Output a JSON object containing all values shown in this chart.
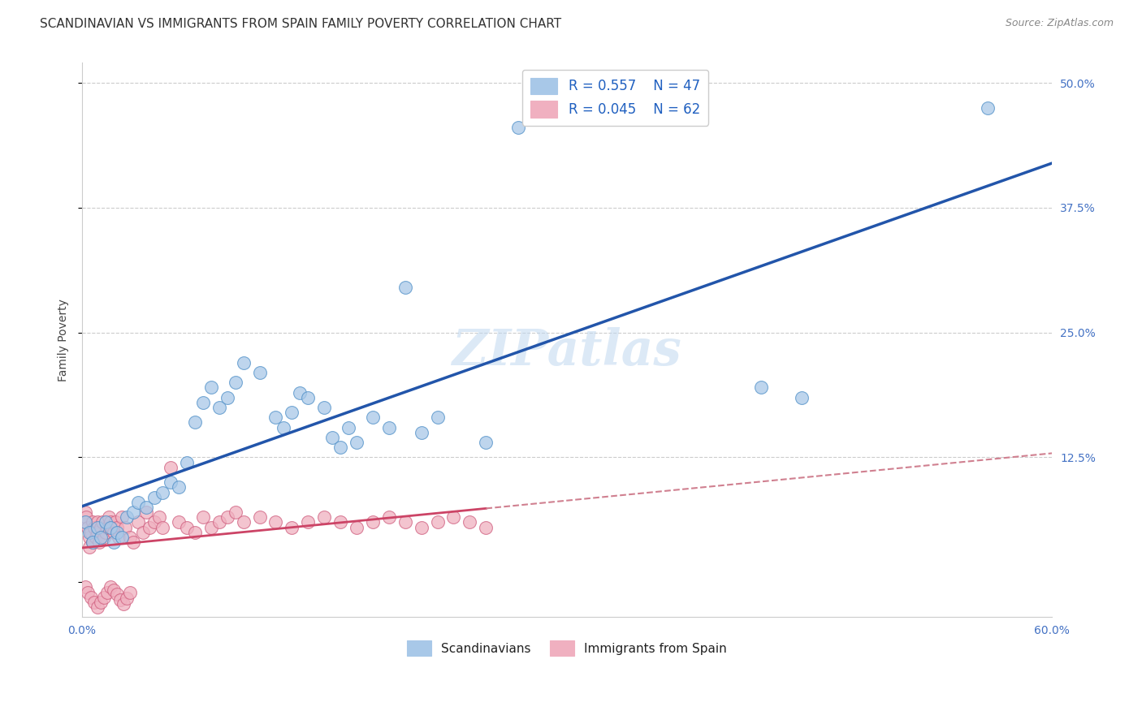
{
  "title": "SCANDINAVIAN VS IMMIGRANTS FROM SPAIN FAMILY POVERTY CORRELATION CHART",
  "source": "Source: ZipAtlas.com",
  "xlim": [
    0.0,
    0.6
  ],
  "ylim": [
    -0.035,
    0.52
  ],
  "ylabel": "Family Poverty",
  "legend_labels": [
    "Scandinavians",
    "Immigrants from Spain"
  ],
  "blue_color": "#A8C8E8",
  "blue_edge_color": "#5090C8",
  "pink_color": "#F0B0C0",
  "pink_edge_color": "#D06080",
  "blue_line_color": "#2255AA",
  "pink_line_color": "#CC4466",
  "pink_dashed_color": "#D08090",
  "watermark": "ZIPatlas",
  "grid_color": "#CCCCCC",
  "background_color": "#FFFFFF",
  "title_fontsize": 11,
  "axis_label_fontsize": 10,
  "tick_fontsize": 10,
  "source_fontsize": 9,
  "scandinavians_x": [
    0.002,
    0.005,
    0.007,
    0.01,
    0.012,
    0.015,
    0.018,
    0.02,
    0.022,
    0.025,
    0.028,
    0.032,
    0.035,
    0.04,
    0.045,
    0.05,
    0.055,
    0.06,
    0.065,
    0.07,
    0.075,
    0.08,
    0.085,
    0.09,
    0.095,
    0.1,
    0.11,
    0.12,
    0.125,
    0.13,
    0.135,
    0.14,
    0.15,
    0.155,
    0.16,
    0.165,
    0.17,
    0.18,
    0.19,
    0.2,
    0.21,
    0.22,
    0.25,
    0.27,
    0.42,
    0.445,
    0.56
  ],
  "scandinavians_y": [
    0.06,
    0.05,
    0.04,
    0.055,
    0.045,
    0.06,
    0.055,
    0.04,
    0.05,
    0.045,
    0.065,
    0.07,
    0.08,
    0.075,
    0.085,
    0.09,
    0.1,
    0.095,
    0.12,
    0.16,
    0.18,
    0.195,
    0.175,
    0.185,
    0.2,
    0.22,
    0.21,
    0.165,
    0.155,
    0.17,
    0.19,
    0.185,
    0.175,
    0.145,
    0.135,
    0.155,
    0.14,
    0.165,
    0.155,
    0.295,
    0.15,
    0.165,
    0.14,
    0.455,
    0.195,
    0.185,
    0.475
  ],
  "spain_x": [
    0.001,
    0.002,
    0.003,
    0.004,
    0.005,
    0.005,
    0.006,
    0.007,
    0.007,
    0.008,
    0.009,
    0.01,
    0.01,
    0.011,
    0.012,
    0.013,
    0.014,
    0.015,
    0.016,
    0.017,
    0.018,
    0.019,
    0.02,
    0.021,
    0.022,
    0.023,
    0.025,
    0.027,
    0.03,
    0.032,
    0.035,
    0.038,
    0.04,
    0.042,
    0.045,
    0.048,
    0.05,
    0.055,
    0.06,
    0.065,
    0.07,
    0.075,
    0.08,
    0.085,
    0.09,
    0.095,
    0.1,
    0.11,
    0.12,
    0.13,
    0.14,
    0.15,
    0.16,
    0.17,
    0.18,
    0.19,
    0.2,
    0.21,
    0.22,
    0.23,
    0.24,
    0.25
  ],
  "spain_y": [
    0.06,
    0.07,
    0.065,
    0.055,
    0.045,
    0.035,
    0.05,
    0.06,
    0.04,
    0.055,
    0.045,
    0.06,
    0.05,
    0.04,
    0.055,
    0.06,
    0.045,
    0.05,
    0.055,
    0.065,
    0.06,
    0.055,
    0.05,
    0.06,
    0.055,
    0.045,
    0.065,
    0.055,
    0.045,
    0.04,
    0.06,
    0.05,
    0.07,
    0.055,
    0.06,
    0.065,
    0.055,
    0.115,
    0.06,
    0.055,
    0.05,
    0.065,
    0.055,
    0.06,
    0.065,
    0.07,
    0.06,
    0.065,
    0.06,
    0.055,
    0.06,
    0.065,
    0.06,
    0.055,
    0.06,
    0.065,
    0.06,
    0.055,
    0.06,
    0.065,
    0.06,
    0.055
  ],
  "spain_extra_x": [
    0.002,
    0.004,
    0.006,
    0.008,
    0.01,
    0.012,
    0.014,
    0.016,
    0.018,
    0.02,
    0.022,
    0.024,
    0.026,
    0.028,
    0.03
  ],
  "spain_extra_y": [
    -0.005,
    -0.01,
    -0.015,
    -0.02,
    -0.025,
    -0.02,
    -0.015,
    -0.01,
    -0.005,
    -0.008,
    -0.012,
    -0.018,
    -0.022,
    -0.016,
    -0.01
  ]
}
